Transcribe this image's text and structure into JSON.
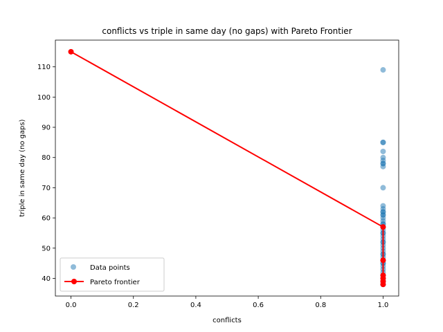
{
  "chart_data": {
    "type": "scatter",
    "title": "conflicts vs triple in same day (no gaps) with Pareto Frontier",
    "xlabel": "conflicts",
    "ylabel": "triple in same day (no gaps)",
    "xlim": [
      -0.05,
      1.05
    ],
    "ylim": [
      34.15,
      118.85
    ],
    "xticks": [
      0.0,
      0.2,
      0.4,
      0.6,
      0.8,
      1.0
    ],
    "xtick_labels": [
      "0.0",
      "0.2",
      "0.4",
      "0.6",
      "0.8",
      "1.0"
    ],
    "yticks": [
      40,
      50,
      60,
      70,
      80,
      90,
      100,
      110
    ],
    "ytick_labels": [
      "40",
      "50",
      "60",
      "70",
      "80",
      "90",
      "100",
      "110"
    ],
    "grid": false,
    "legend_position": "lower-left",
    "series": [
      {
        "name": "Data points",
        "kind": "scatter",
        "color": "#1f77b4",
        "alpha": 0.5,
        "x": [
          1,
          1,
          1,
          1,
          1,
          1,
          1,
          1,
          1,
          1,
          1,
          1,
          1,
          1,
          1,
          1,
          1,
          1,
          1,
          1,
          1,
          1,
          1,
          1,
          1,
          1,
          1,
          1,
          1,
          1,
          1,
          1,
          1,
          1,
          1,
          1,
          1,
          1,
          1,
          1,
          1,
          1,
          1,
          1,
          1,
          1,
          1,
          1,
          1,
          1,
          1,
          1
        ],
        "y": [
          109,
          85,
          85,
          82,
          80,
          79,
          78,
          78,
          77,
          70,
          64,
          63,
          62,
          62,
          61,
          61,
          60,
          59,
          58,
          58,
          57,
          57,
          57,
          56,
          55,
          55,
          54,
          53,
          52,
          52,
          51,
          50,
          49,
          48,
          48,
          47,
          46,
          46,
          45,
          45,
          44,
          43,
          42,
          41,
          41,
          40,
          40,
          39,
          39,
          38,
          38,
          38
        ]
      },
      {
        "name": "Pareto frontier",
        "kind": "line",
        "color": "#ff0000",
        "x": [
          0,
          1,
          1,
          1,
          1,
          1,
          1
        ],
        "y": [
          115,
          57,
          46,
          41,
          40,
          39,
          38
        ]
      }
    ]
  }
}
